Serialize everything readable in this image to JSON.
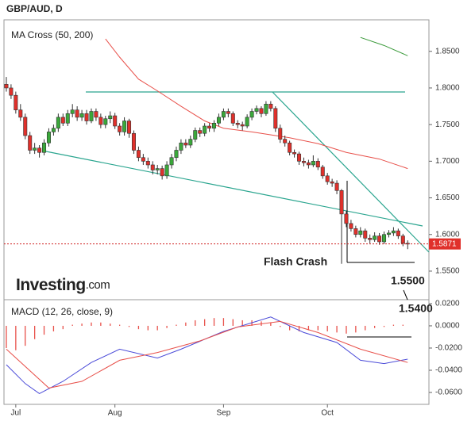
{
  "chart_data": [
    {
      "type": "candlestick",
      "title": "GBP/AUD, D",
      "legend": "MA Cross (50, 200)",
      "logo_main": "Investing",
      "logo_suffix": ".com",
      "up_color": "#3aa83a",
      "down_color": "#e0302b",
      "xlim": [
        -0.5,
        89.5
      ],
      "xticks": [
        {
          "value": 2,
          "label": "Jul"
        },
        {
          "value": 23,
          "label": "Aug"
        },
        {
          "value": 46,
          "label": "Sep"
        },
        {
          "value": 68,
          "label": "Oct"
        }
      ],
      "ylim": [
        1.511,
        1.893
      ],
      "yticks": [
        {
          "value": 1.55,
          "label": "1.5500"
        },
        {
          "value": 1.6,
          "label": "1.6000"
        },
        {
          "value": 1.65,
          "label": "1.6500"
        },
        {
          "value": 1.7,
          "label": "1.7000"
        },
        {
          "value": 1.75,
          "label": "1.7500"
        },
        {
          "value": 1.8,
          "label": "1.8000"
        },
        {
          "value": 1.85,
          "label": "1.8500"
        }
      ],
      "ohlc": [
        [
          1.805,
          1.815,
          1.795,
          1.8
        ],
        [
          1.8,
          1.805,
          1.785,
          1.79
        ],
        [
          1.79,
          1.795,
          1.765,
          1.77
        ],
        [
          1.77,
          1.778,
          1.755,
          1.76
        ],
        [
          1.76,
          1.765,
          1.73,
          1.735
        ],
        [
          1.735,
          1.74,
          1.71,
          1.715
        ],
        [
          1.715,
          1.725,
          1.71,
          1.718
        ],
        [
          1.718,
          1.722,
          1.705,
          1.712
        ],
        [
          1.712,
          1.73,
          1.708,
          1.725
        ],
        [
          1.725,
          1.745,
          1.72,
          1.74
        ],
        [
          1.74,
          1.75,
          1.735,
          1.745
        ],
        [
          1.745,
          1.765,
          1.74,
          1.76
        ],
        [
          1.76,
          1.765,
          1.748,
          1.752
        ],
        [
          1.752,
          1.77,
          1.748,
          1.765
        ],
        [
          1.765,
          1.778,
          1.76,
          1.77
        ],
        [
          1.77,
          1.775,
          1.755,
          1.76
        ],
        [
          1.76,
          1.77,
          1.755,
          1.765
        ],
        [
          1.765,
          1.77,
          1.75,
          1.755
        ],
        [
          1.755,
          1.772,
          1.752,
          1.768
        ],
        [
          1.768,
          1.772,
          1.755,
          1.76
        ],
        [
          1.76,
          1.765,
          1.745,
          1.75
        ],
        [
          1.75,
          1.762,
          1.745,
          1.758
        ],
        [
          1.758,
          1.768,
          1.752,
          1.762
        ],
        [
          1.762,
          1.766,
          1.744,
          1.748
        ],
        [
          1.748,
          1.752,
          1.735,
          1.74
        ],
        [
          1.74,
          1.76,
          1.735,
          1.755
        ],
        [
          1.755,
          1.758,
          1.732,
          1.738
        ],
        [
          1.738,
          1.742,
          1.71,
          1.715
        ],
        [
          1.715,
          1.72,
          1.7,
          1.705
        ],
        [
          1.705,
          1.71,
          1.695,
          1.7
        ],
        [
          1.7,
          1.705,
          1.69,
          1.695
        ],
        [
          1.695,
          1.7,
          1.682,
          1.688
        ],
        [
          1.688,
          1.695,
          1.682,
          1.69
        ],
        [
          1.69,
          1.694,
          1.675,
          1.68
        ],
        [
          1.68,
          1.7,
          1.676,
          1.695
        ],
        [
          1.695,
          1.71,
          1.69,
          1.705
        ],
        [
          1.705,
          1.72,
          1.7,
          1.715
        ],
        [
          1.715,
          1.73,
          1.71,
          1.725
        ],
        [
          1.725,
          1.73,
          1.718,
          1.722
        ],
        [
          1.722,
          1.735,
          1.718,
          1.73
        ],
        [
          1.73,
          1.746,
          1.726,
          1.742
        ],
        [
          1.742,
          1.746,
          1.733,
          1.738
        ],
        [
          1.738,
          1.752,
          1.734,
          1.748
        ],
        [
          1.748,
          1.752,
          1.74,
          1.745
        ],
        [
          1.745,
          1.756,
          1.74,
          1.752
        ],
        [
          1.752,
          1.765,
          1.748,
          1.76
        ],
        [
          1.76,
          1.772,
          1.756,
          1.768
        ],
        [
          1.768,
          1.772,
          1.76,
          1.765
        ],
        [
          1.765,
          1.768,
          1.748,
          1.752
        ],
        [
          1.752,
          1.756,
          1.745,
          1.75
        ],
        [
          1.75,
          1.754,
          1.742,
          1.748
        ],
        [
          1.748,
          1.764,
          1.745,
          1.76
        ],
        [
          1.76,
          1.772,
          1.756,
          1.768
        ],
        [
          1.768,
          1.776,
          1.764,
          1.772
        ],
        [
          1.772,
          1.775,
          1.76,
          1.765
        ],
        [
          1.765,
          1.782,
          1.762,
          1.778
        ],
        [
          1.778,
          1.782,
          1.768,
          1.772
        ],
        [
          1.772,
          1.775,
          1.74,
          1.745
        ],
        [
          1.745,
          1.75,
          1.725,
          1.73
        ],
        [
          1.73,
          1.735,
          1.72,
          1.725
        ],
        [
          1.725,
          1.728,
          1.708,
          1.712
        ],
        [
          1.712,
          1.716,
          1.705,
          1.71
        ],
        [
          1.71,
          1.713,
          1.695,
          1.7
        ],
        [
          1.7,
          1.705,
          1.693,
          1.698
        ],
        [
          1.698,
          1.702,
          1.69,
          1.695
        ],
        [
          1.695,
          1.708,
          1.692,
          1.7
        ],
        [
          1.7,
          1.704,
          1.688,
          1.692
        ],
        [
          1.692,
          1.695,
          1.676,
          1.68
        ],
        [
          1.68,
          1.684,
          1.668,
          1.672
        ],
        [
          1.672,
          1.676,
          1.665,
          1.67
        ],
        [
          1.67,
          1.674,
          1.655,
          1.66
        ],
        [
          1.66,
          1.662,
          1.56,
          1.628
        ],
        [
          1.628,
          1.632,
          1.61,
          1.615
        ],
        [
          1.615,
          1.62,
          1.604,
          1.608
        ],
        [
          1.608,
          1.612,
          1.596,
          1.6
        ],
        [
          1.6,
          1.61,
          1.596,
          1.605
        ],
        [
          1.605,
          1.608,
          1.59,
          1.595
        ],
        [
          1.595,
          1.6,
          1.588,
          1.593
        ],
        [
          1.593,
          1.603,
          1.59,
          1.598
        ],
        [
          1.598,
          1.602,
          1.586,
          1.59
        ],
        [
          1.59,
          1.604,
          1.587,
          1.6
        ],
        [
          1.6,
          1.606,
          1.596,
          1.602
        ],
        [
          1.602,
          1.61,
          1.598,
          1.605
        ],
        [
          1.605,
          1.608,
          1.594,
          1.598
        ],
        [
          1.598,
          1.601,
          1.584,
          1.588
        ],
        [
          1.588,
          1.592,
          1.58,
          1.587
        ]
      ],
      "series": [
        {
          "color": "#e8504a",
          "x": [
            21,
            24,
            28,
            32,
            37,
            42,
            46,
            52,
            60,
            66,
            72,
            79,
            85
          ],
          "values": [
            1.867,
            1.842,
            1.812,
            1.796,
            1.775,
            1.755,
            1.745,
            1.74,
            1.732,
            1.724,
            1.712,
            1.703,
            1.69
          ]
        },
        {
          "color": "#3a9a3a",
          "x": [
            75,
            80,
            85
          ],
          "values": [
            1.869,
            1.858,
            1.844
          ]
        }
      ],
      "last_price": 1.5871,
      "annotations": [
        "Flash Crash",
        "1.5500",
        "1.5400"
      ]
    },
    {
      "type": "macd",
      "legend": "MACD (12, 26, close, 9)",
      "ylim": [
        -0.0707,
        0.0221
      ],
      "yticks": [
        {
          "value": 0.02,
          "label": "0.0200"
        },
        {
          "value": 0,
          "label": "0.0000"
        },
        {
          "value": -0.02,
          "label": "-0.0200"
        },
        {
          "value": -0.04,
          "label": "-0.0400"
        },
        {
          "value": -0.06,
          "label": "-0.0600"
        }
      ],
      "histogram": {
        "color": "#e8504a",
        "x": [
          0,
          2,
          4,
          6,
          8,
          10,
          12,
          14,
          16,
          18,
          20,
          22,
          24,
          26,
          28,
          30,
          32,
          34,
          36,
          38,
          40,
          42,
          44,
          46,
          48,
          50,
          52,
          54,
          56,
          58,
          60,
          62,
          64,
          66,
          68,
          70,
          72,
          74,
          76,
          78,
          80,
          82,
          84
        ],
        "values": [
          -0.02,
          -0.022,
          -0.018,
          -0.012,
          -0.008,
          -0.005,
          -0.003,
          0.001,
          0.002,
          0.003,
          0.003,
          0.002,
          0.001,
          -0.001,
          -0.003,
          -0.004,
          -0.004,
          -0.002,
          0.001,
          0.003,
          0.005,
          0.006,
          0.007,
          0.007,
          0.006,
          0.005,
          0.005,
          0.004,
          0.003,
          -0.001,
          -0.004,
          -0.005,
          -0.004,
          -0.004,
          -0.005,
          -0.006,
          -0.007,
          -0.006,
          -0.004,
          -0.002,
          -0.001,
          0.001,
          0.001
        ]
      },
      "series": [
        {
          "color": "#4a4ad8",
          "x": [
            0,
            4,
            7,
            12,
            18,
            24,
            32,
            37,
            46,
            56,
            63,
            70,
            75,
            80,
            85
          ],
          "values": [
            -0.035,
            -0.052,
            -0.061,
            -0.05,
            -0.033,
            -0.021,
            -0.029,
            -0.021,
            -0.005,
            0.008,
            -0.006,
            -0.015,
            -0.031,
            -0.034,
            -0.03
          ]
        },
        {
          "color": "#e8504a",
          "x": [
            0,
            9,
            16,
            24,
            32,
            41,
            49,
            58,
            66,
            75,
            85
          ],
          "values": [
            -0.021,
            -0.056,
            -0.05,
            -0.031,
            -0.024,
            -0.0136,
            -0.001,
            0.004,
            -0.006,
            -0.021,
            -0.033
          ]
        }
      ]
    }
  ]
}
